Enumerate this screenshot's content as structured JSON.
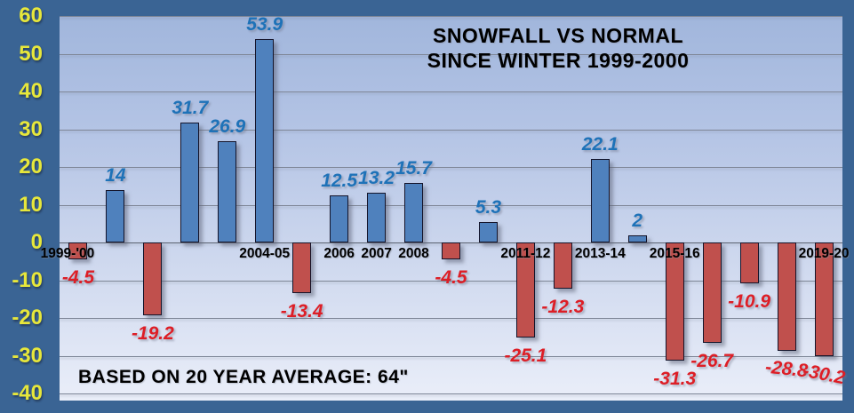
{
  "chart_data": {
    "type": "bar",
    "title_line1": "SNOWFALL VS NORMAL",
    "title_line2": "SINCE WINTER 1999-2000",
    "footnote": "BASED ON 20 YEAR AVERAGE: 64\"",
    "values": [
      -4.5,
      14,
      -19.2,
      31.7,
      26.9,
      53.9,
      -13.4,
      12.5,
      13.2,
      15.7,
      -4.5,
      5.3,
      -25.1,
      -12.3,
      22.1,
      2,
      -31.3,
      -26.7,
      -10.9,
      -28.8,
      -30.2
    ],
    "x_axis_labels": [
      {
        "index": 0,
        "label": "1999-'00"
      },
      {
        "index": 5,
        "label": "2004-05"
      },
      {
        "index": 7,
        "label": "2006"
      },
      {
        "index": 8,
        "label": "2007"
      },
      {
        "index": 9,
        "label": "2008"
      },
      {
        "index": 12,
        "label": "2011-12"
      },
      {
        "index": 14,
        "label": "2013-14"
      },
      {
        "index": 16,
        "label": "2015-16"
      },
      {
        "index": 20,
        "label": "2019-20"
      }
    ],
    "y_ticks": [
      60,
      50,
      40,
      30,
      20,
      10,
      0,
      -10,
      -20,
      -30,
      -40
    ],
    "ylim": [
      -40,
      60
    ],
    "grid": "horizontal",
    "legend": "none",
    "tilted_value_labels": [
      {
        "index": 19,
        "deg": 6
      },
      {
        "index": 20,
        "deg": 11
      }
    ],
    "colors": {
      "positive_bar": "#4F81BD",
      "negative_bar": "#C0504D",
      "positive_label": "#1E72B8",
      "negative_label": "#DD1E26",
      "y_tick_label": "#E7E73B",
      "frame": "#3A6494",
      "axis_label": "#000000",
      "title": "#000000"
    }
  }
}
